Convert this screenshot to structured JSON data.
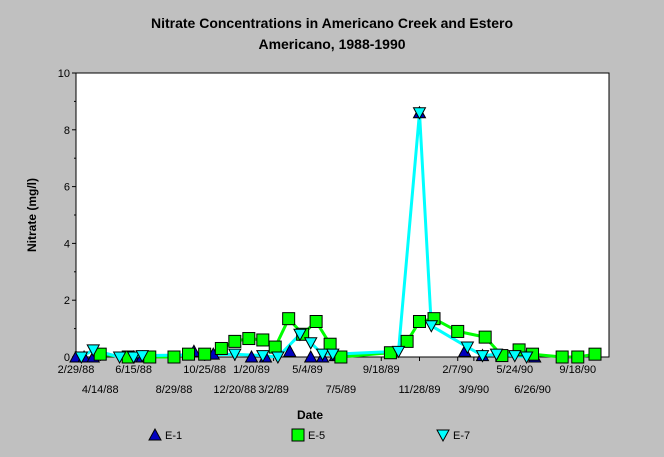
{
  "chart_data": {
    "type": "line",
    "title_line1": "Nitrate Concentrations in Americano Creek and Estero",
    "title_line2": "Americano, 1988-1990",
    "xlabel": "Date",
    "ylabel": "Nitrate (mg/l)",
    "ylim": [
      0,
      10
    ],
    "yticks": [
      "0",
      "2",
      "4",
      "6",
      "8",
      "10"
    ],
    "xlim": [
      "1988-02-29",
      "1990-11-15"
    ],
    "xticks_upper": [
      {
        "date": "1988-02-29",
        "label": "2/29/88"
      },
      {
        "date": "1988-06-15",
        "label": "6/15/88"
      },
      {
        "date": "1988-10-25",
        "label": "10/25/88"
      },
      {
        "date": "1989-01-20",
        "label": "1/20/89"
      },
      {
        "date": "1989-05-04",
        "label": "5/4/89"
      },
      {
        "date": "1989-09-18",
        "label": "9/18/89"
      },
      {
        "date": "1990-02-07",
        "label": "2/7/90"
      },
      {
        "date": "1990-05-24",
        "label": "5/24/90"
      },
      {
        "date": "1990-09-18",
        "label": "9/18/90"
      }
    ],
    "xticks_lower": [
      {
        "date": "1988-04-14",
        "label": "4/14/88"
      },
      {
        "date": "1988-08-29",
        "label": "8/29/88"
      },
      {
        "date": "1988-12-20",
        "label": "12/20/88"
      },
      {
        "date": "1989-03-02",
        "label": "3/2/89"
      },
      {
        "date": "1989-07-05",
        "label": "7/5/89"
      },
      {
        "date": "1989-11-28",
        "label": "11/28/89"
      },
      {
        "date": "1990-03-09",
        "label": "3/9/90"
      },
      {
        "date": "1990-06-26",
        "label": "6/26/90"
      }
    ],
    "legend_position": "bottom",
    "series": [
      {
        "name": "E-1",
        "color": "#0000c0",
        "marker": "triangle-up",
        "line": false,
        "points": [
          [
            "1988-02-29",
            0.0
          ],
          [
            "1988-03-15",
            0.0
          ],
          [
            "1988-04-01",
            0.0
          ],
          [
            "1988-06-15",
            0.0
          ],
          [
            "1988-07-01",
            0.0
          ],
          [
            "1988-10-05",
            0.2
          ],
          [
            "1988-11-10",
            0.1
          ],
          [
            "1989-01-20",
            0.0
          ],
          [
            "1989-02-15",
            0.0
          ],
          [
            "1989-04-01",
            0.2
          ],
          [
            "1989-05-10",
            0.0
          ],
          [
            "1989-06-01",
            0.0
          ],
          [
            "1989-06-25",
            0.05
          ],
          [
            "1989-11-28",
            8.6
          ],
          [
            "1990-02-20",
            0.2
          ],
          [
            "1990-03-25",
            0.05
          ],
          [
            "1990-06-30",
            0.0
          ]
        ]
      },
      {
        "name": "E-5",
        "color": "#00ff00",
        "marker": "square",
        "line": true,
        "points": [
          [
            "1988-04-14",
            0.1
          ],
          [
            "1988-06-05",
            0.0
          ],
          [
            "1988-07-15",
            0.0
          ],
          [
            "1988-08-29",
            0.0
          ],
          [
            "1988-09-25",
            0.1
          ],
          [
            "1988-10-25",
            0.1
          ],
          [
            "1988-11-25",
            0.3
          ],
          [
            "1988-12-20",
            0.55
          ],
          [
            "1989-01-15",
            0.65
          ],
          [
            "1989-02-10",
            0.6
          ],
          [
            "1989-03-05",
            0.35
          ],
          [
            "1989-03-30",
            1.35
          ],
          [
            "1989-04-25",
            0.8
          ],
          [
            "1989-05-20",
            1.25
          ],
          [
            "1989-06-15",
            0.45
          ],
          [
            "1989-07-05",
            0.0
          ],
          [
            "1989-10-05",
            0.15
          ],
          [
            "1989-11-05",
            0.55
          ],
          [
            "1989-11-28",
            1.25
          ],
          [
            "1989-12-25",
            1.35
          ],
          [
            "1990-02-07",
            0.9
          ],
          [
            "1990-03-30",
            0.7
          ],
          [
            "1990-04-30",
            0.05
          ],
          [
            "1990-06-01",
            0.25
          ],
          [
            "1990-06-26",
            0.1
          ],
          [
            "1990-08-20",
            0.0
          ],
          [
            "1990-09-18",
            0.0
          ],
          [
            "1990-10-20",
            0.1
          ]
        ]
      },
      {
        "name": "E-7",
        "color": "#00ffff",
        "marker": "triangle-down",
        "line": true,
        "points": [
          [
            "1988-03-10",
            0.0
          ],
          [
            "1988-04-01",
            0.25
          ],
          [
            "1988-05-20",
            0.0
          ],
          [
            "1988-06-15",
            0.0
          ],
          [
            "1988-07-01",
            0.05
          ],
          [
            "1988-12-20",
            0.1
          ],
          [
            "1989-02-10",
            0.05
          ],
          [
            "1989-03-10",
            0.0
          ],
          [
            "1989-04-20",
            0.8
          ],
          [
            "1989-05-10",
            0.5
          ],
          [
            "1989-06-01",
            0.1
          ],
          [
            "1989-06-20",
            0.1
          ],
          [
            "1989-10-20",
            0.2
          ],
          [
            "1989-11-28",
            8.6
          ],
          [
            "1989-12-20",
            1.1
          ],
          [
            "1990-02-25",
            0.35
          ],
          [
            "1990-03-25",
            0.05
          ],
          [
            "1990-04-20",
            0.1
          ],
          [
            "1990-05-24",
            0.05
          ],
          [
            "1990-06-15",
            0.0
          ]
        ]
      }
    ]
  }
}
